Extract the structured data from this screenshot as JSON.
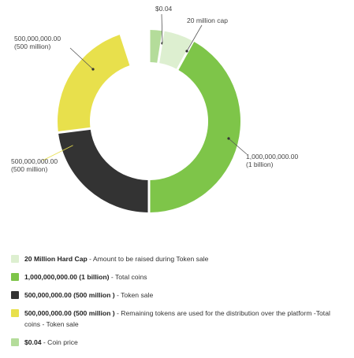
{
  "chart_data": {
    "type": "pie",
    "variant": "donut",
    "slices": [
      {
        "label": "$0.04",
        "value": 0.04,
        "share": 0.025,
        "color": "#b4dc9a"
      },
      {
        "label": "20 million cap",
        "value": 20000000,
        "share": 0.055,
        "color": "#ddefd0"
      },
      {
        "label": "1,000,000,000.00\n(1 billion)",
        "value": 1000000000,
        "share": 0.42,
        "color": "#7ec549"
      },
      {
        "label": "500,000,000.00\n(500 million)",
        "value": 500000000,
        "share": 0.23,
        "color": "#333333"
      },
      {
        "label": "500,000,000.00\n(500 million)",
        "value": 500000000,
        "share": 0.22,
        "color": "#e8e04c"
      }
    ]
  },
  "legend": {
    "items": [
      {
        "bold": "20 Million Hard Cap",
        "text": " - Amount to be raised during Token sale",
        "color": "#ddefd0"
      },
      {
        "bold": "1,000,000,000.00 (1 billion)",
        "text": " - Total coins",
        "color": "#7ec549"
      },
      {
        "bold": "500,000,000.00 (500 million )",
        "text": " - Token sale",
        "color": "#333333"
      },
      {
        "bold": "500,000,000.00 (500 million )",
        "text": " - Remaining tokens are used for the distribution over the platform -Total coins - Token sale",
        "color": "#e8e04c"
      },
      {
        "bold": "$0.04",
        "text": " - Coin price",
        "color": "#b4dc9a"
      }
    ]
  }
}
